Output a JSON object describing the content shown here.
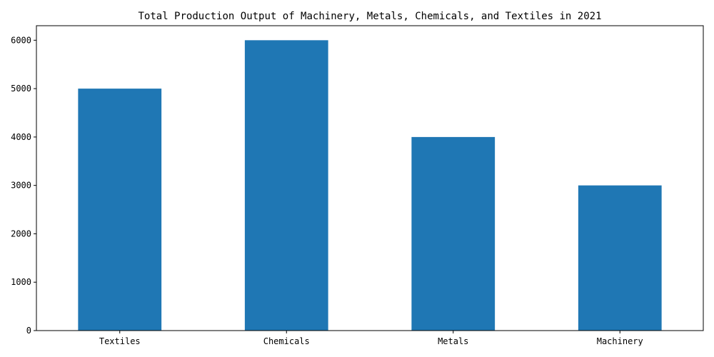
{
  "chart_data": {
    "type": "bar",
    "title": "Total Production Output of Machinery, Metals, Chemicals, and Textiles in 2021",
    "xlabel": "",
    "ylabel": "",
    "categories": [
      "Textiles",
      "Chemicals",
      "Metals",
      "Machinery"
    ],
    "values": [
      5000,
      6000,
      4000,
      3000
    ],
    "ylim": [
      0,
      6300
    ],
    "yticks": [
      0,
      1000,
      2000,
      3000,
      4000,
      5000,
      6000
    ],
    "grid": false,
    "legend": "none",
    "bar_color": "#1f77b4"
  }
}
